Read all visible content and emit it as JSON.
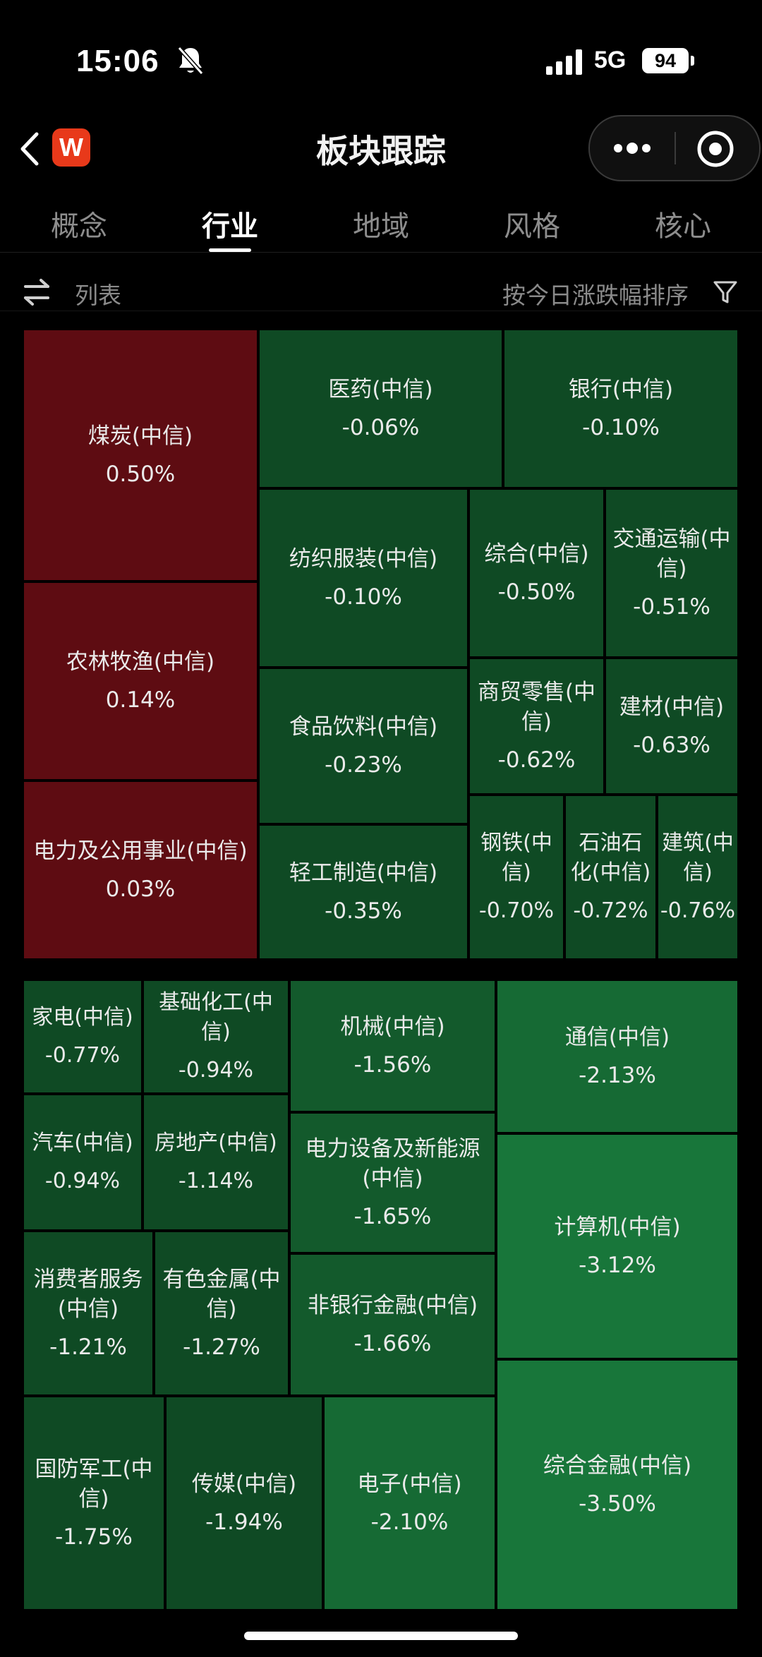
{
  "status_bar": {
    "time": "15:06",
    "network": "5G",
    "battery": "94"
  },
  "nav": {
    "logo_text": "W",
    "title": "板块跟踪"
  },
  "tabs": [
    {
      "label": "概念"
    },
    {
      "label": "行业",
      "active": true
    },
    {
      "label": "地域"
    },
    {
      "label": "风格"
    },
    {
      "label": "核心"
    }
  ],
  "toolbar": {
    "view_label": "列表",
    "sort_label": "按今日涨跌幅排序"
  },
  "colors": {
    "up": "#5e0c12",
    "down_light": "#0e4020",
    "down_strong": "#18763a"
  },
  "sectors": [
    {
      "name": "煤炭(中信)",
      "change": "0.50%"
    },
    {
      "name": "医药(中信)",
      "change": "-0.06%"
    },
    {
      "name": "银行(中信)",
      "change": "-0.10%"
    },
    {
      "name": "农林牧渔(中信)",
      "change": "0.14%"
    },
    {
      "name": "纺织服装(中信)",
      "change": "-0.10%"
    },
    {
      "name": "综合(中信)",
      "change": "-0.50%"
    },
    {
      "name": "交通运输(中信)",
      "change": "-0.51%"
    },
    {
      "name": "食品饮料(中信)",
      "change": "-0.23%"
    },
    {
      "name": "商贸零售(中信)",
      "change": "-0.62%"
    },
    {
      "name": "建材(中信)",
      "change": "-0.63%"
    },
    {
      "name": "电力及公用事业(中信)",
      "change": "0.03%"
    },
    {
      "name": "轻工制造(中信)",
      "change": "-0.35%"
    },
    {
      "name": "钢铁(中信)",
      "change": "-0.70%"
    },
    {
      "name": "石油石化(中信)",
      "change": "-0.72%"
    },
    {
      "name": "建筑(中信)",
      "change": "-0.76%"
    },
    {
      "name": "家电(中信)",
      "change": "-0.77%"
    },
    {
      "name": "基础化工(中信)",
      "change": "-0.94%"
    },
    {
      "name": "机械(中信)",
      "change": "-1.56%"
    },
    {
      "name": "通信(中信)",
      "change": "-2.13%"
    },
    {
      "name": "汽车(中信)",
      "change": "-0.94%"
    },
    {
      "name": "房地产(中信)",
      "change": "-1.14%"
    },
    {
      "name": "电力设备及新能源(中信)",
      "change": "-1.65%"
    },
    {
      "name": "计算机(中信)",
      "change": "-3.12%"
    },
    {
      "name": "消费者服务(中信)",
      "change": "-1.21%"
    },
    {
      "name": "有色金属(中信)",
      "change": "-1.27%"
    },
    {
      "name": "非银行金融(中信)",
      "change": "-1.66%"
    },
    {
      "name": "国防军工(中信)",
      "change": "-1.75%"
    },
    {
      "name": "传媒(中信)",
      "change": "-1.94%"
    },
    {
      "name": "电子(中信)",
      "change": "-2.10%"
    },
    {
      "name": "综合金融(中信)",
      "change": "-3.50%"
    }
  ]
}
